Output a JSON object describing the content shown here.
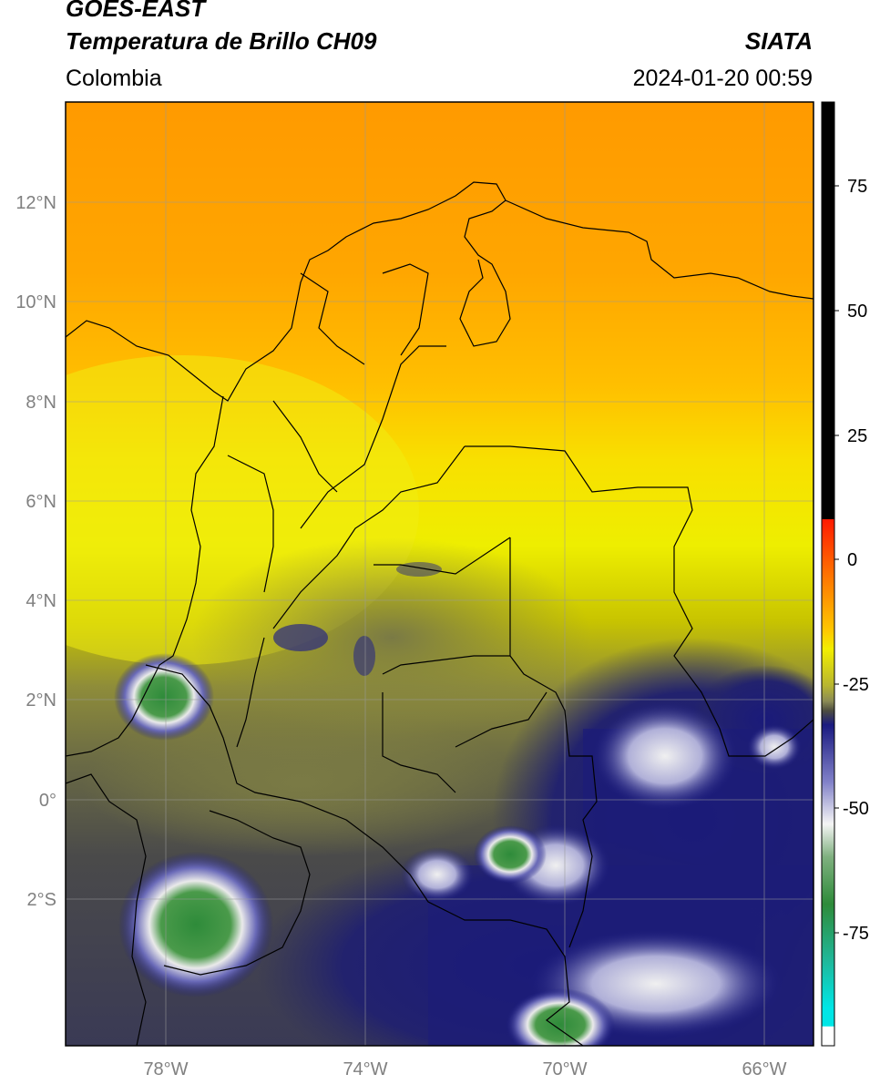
{
  "header": {
    "title_line1": "GOES-EAST",
    "title_line2": "Temperatura de Brillo CH09",
    "region": "Colombia",
    "organization": "SIATA",
    "datetime": "2024-01-20 00:59"
  },
  "map": {
    "lon_range": [
      -80,
      -65
    ],
    "lat_range": [
      -5.1,
      14
    ],
    "lat_ticks": [
      "12°N",
      "10°N",
      "8°N",
      "6°N",
      "4°N",
      "2°N",
      "0°",
      "2°S"
    ],
    "lon_ticks": [
      "78°W",
      "74°W",
      "70°W",
      "66°W"
    ]
  },
  "colorbar": {
    "range": [
      -100,
      90
    ],
    "tick_labels": [
      "75",
      "50",
      "25",
      "0",
      "-25",
      "-50",
      "-75"
    ],
    "colors": {
      "hot": "#000000",
      "red": "#ff1a00",
      "orange": "#ff9900",
      "yellow": "#f2ee00",
      "olive": "#8c8c3c",
      "dark_olive": "#4d4d40",
      "navy": "#1a1a80",
      "white": "#f5f5f5",
      "green": "#2e8b3a",
      "cyan": "#00e6e6"
    }
  }
}
